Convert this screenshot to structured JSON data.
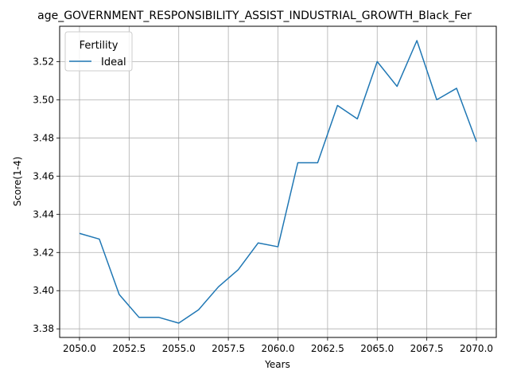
{
  "chart_data": {
    "type": "line",
    "title": "age_GOVERNMENT_RESPONSIBILITY_ASSIST_INDUSTRIAL_GROWTH_Black_Fer",
    "xlabel": "Years",
    "ylabel": "Score(1-4)",
    "xlim": [
      2049.0,
      2071.0
    ],
    "ylim": [
      3.3755,
      3.5385
    ],
    "xticks": [
      2050.0,
      2052.5,
      2055.0,
      2057.5,
      2060.0,
      2062.5,
      2065.0,
      2067.5,
      2070.0
    ],
    "xtick_labels": [
      "2050.0",
      "2052.5",
      "2055.0",
      "2057.5",
      "2060.0",
      "2062.5",
      "2065.0",
      "2067.5",
      "2070.0"
    ],
    "yticks": [
      3.38,
      3.4,
      3.42,
      3.44,
      3.46,
      3.48,
      3.5,
      3.52
    ],
    "ytick_labels": [
      "3.38",
      "3.40",
      "3.42",
      "3.44",
      "3.46",
      "3.48",
      "3.50",
      "3.52"
    ],
    "grid": true,
    "legend": {
      "title": "Fertility",
      "placement": "top-left"
    },
    "series": [
      {
        "name": "Ideal",
        "color": "#1f77b4",
        "x": [
          2050,
          2051,
          2052,
          2053,
          2054,
          2055,
          2056,
          2057,
          2058,
          2059,
          2060,
          2061,
          2062,
          2063,
          2064,
          2065,
          2066,
          2067,
          2068,
          2069,
          2070
        ],
        "y": [
          3.43,
          3.427,
          3.398,
          3.386,
          3.386,
          3.383,
          3.39,
          3.402,
          3.411,
          3.425,
          3.423,
          3.467,
          3.467,
          3.497,
          3.49,
          3.52,
          3.507,
          3.531,
          3.5,
          3.506,
          3.478
        ]
      }
    ]
  }
}
